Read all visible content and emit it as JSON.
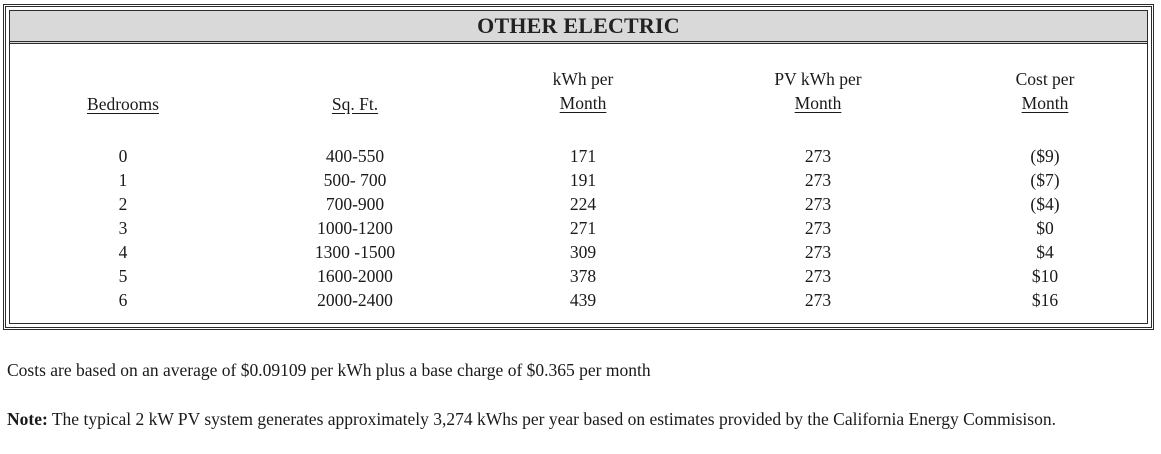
{
  "section": {
    "title": "OTHER ELECTRIC"
  },
  "table": {
    "headers": {
      "bedrooms": "Bedrooms",
      "sqft": "Sq. Ft.",
      "kwh_top": "kWh per",
      "kwh_bottom": "Month",
      "pv_top": "PV kWh per",
      "pv_bottom": "Month",
      "cost_top": "Cost per",
      "cost_bottom": "Month"
    },
    "rows": [
      {
        "bedrooms": "0",
        "sqft": "400-550",
        "kwh": "171",
        "pv": "273",
        "cost": "($9)"
      },
      {
        "bedrooms": "1",
        "sqft": "500- 700",
        "kwh": "191",
        "pv": "273",
        "cost": "($7)"
      },
      {
        "bedrooms": "2",
        "sqft": "700-900",
        "kwh": "224",
        "pv": "273",
        "cost": "($4)"
      },
      {
        "bedrooms": "3",
        "sqft": "1000-1200",
        "kwh": "271",
        "pv": "273",
        "cost": "$0"
      },
      {
        "bedrooms": "4",
        "sqft": "1300 -1500",
        "kwh": "309",
        "pv": "273",
        "cost": "$4"
      },
      {
        "bedrooms": "5",
        "sqft": "1600-2000",
        "kwh": "378",
        "pv": "273",
        "cost": "$10"
      },
      {
        "bedrooms": "6",
        "sqft": "2000-2400",
        "kwh": "439",
        "pv": "273",
        "cost": "$16"
      }
    ]
  },
  "notes": {
    "costs": "Costs are based on an average of $0.09109 per kWh plus a base charge of $0.365 per month",
    "note_label": "Note:",
    "note_body": " The typical 2 kW PV system generates approximately 3,274 kWhs per year based on estimates provided by the California Energy Commisison."
  }
}
